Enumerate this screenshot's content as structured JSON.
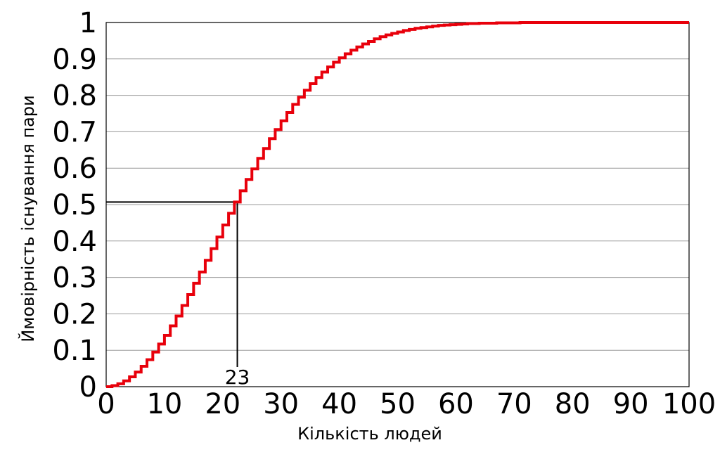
{
  "chart_data": {
    "type": "line",
    "xlabel": "Кількість людей",
    "ylabel": "Ймовірність існування пари",
    "xlim": [
      0,
      100
    ],
    "ylim": [
      0,
      1
    ],
    "x_ticks": [
      "0",
      "10",
      "20",
      "30",
      "40",
      "50",
      "60",
      "70",
      "80",
      "90",
      "100"
    ],
    "y_ticks": [
      "0",
      "0.1",
      "0.2",
      "0.3",
      "0.4",
      "0.5",
      "0.6",
      "0.7",
      "0.8",
      "0.9",
      "1"
    ],
    "grid": true,
    "series": [
      {
        "color": "#e8000b",
        "step": true,
        "x": [
          1,
          2,
          3,
          4,
          5,
          6,
          7,
          8,
          9,
          10,
          11,
          12,
          13,
          14,
          15,
          16,
          17,
          18,
          19,
          20,
          21,
          22,
          23,
          24,
          25,
          26,
          27,
          28,
          29,
          30,
          31,
          32,
          33,
          34,
          35,
          36,
          37,
          38,
          39,
          40,
          41,
          42,
          43,
          44,
          45,
          46,
          47,
          48,
          49,
          50,
          51,
          52,
          53,
          54,
          55,
          56,
          57,
          58,
          59,
          60,
          61,
          62,
          63,
          64,
          65,
          66,
          67,
          68,
          69,
          70,
          71,
          72,
          73,
          74,
          75,
          76,
          77,
          78,
          79,
          80,
          81,
          82,
          83,
          84,
          85,
          86,
          87,
          88,
          89,
          90,
          91,
          92,
          93,
          94,
          95,
          96,
          97,
          98,
          99,
          100
        ],
        "y": [
          0,
          0.003,
          0.008,
          0.016,
          0.027,
          0.04,
          0.056,
          0.074,
          0.095,
          0.117,
          0.141,
          0.167,
          0.194,
          0.223,
          0.253,
          0.284,
          0.315,
          0.347,
          0.379,
          0.411,
          0.444,
          0.476,
          0.507,
          0.538,
          0.569,
          0.598,
          0.627,
          0.654,
          0.681,
          0.706,
          0.73,
          0.753,
          0.775,
          0.795,
          0.814,
          0.832,
          0.849,
          0.864,
          0.878,
          0.891,
          0.903,
          0.914,
          0.924,
          0.933,
          0.941,
          0.948,
          0.955,
          0.961,
          0.966,
          0.97,
          0.974,
          0.978,
          0.981,
          0.984,
          0.986,
          0.988,
          0.99,
          0.992,
          0.993,
          0.994,
          0.995,
          0.996,
          0.997,
          0.997,
          0.998,
          0.998,
          0.998,
          0.999,
          0.999,
          0.999,
          0.999,
          1,
          1,
          1,
          1,
          1,
          1,
          1,
          1,
          1,
          1,
          1,
          1,
          1,
          1,
          1,
          1,
          1,
          1,
          1,
          1,
          1,
          1,
          1,
          1,
          1,
          1,
          1,
          1,
          1
        ]
      }
    ],
    "marker": {
      "x": 23,
      "y": 0.507,
      "label": "23",
      "color": "#000000"
    }
  }
}
